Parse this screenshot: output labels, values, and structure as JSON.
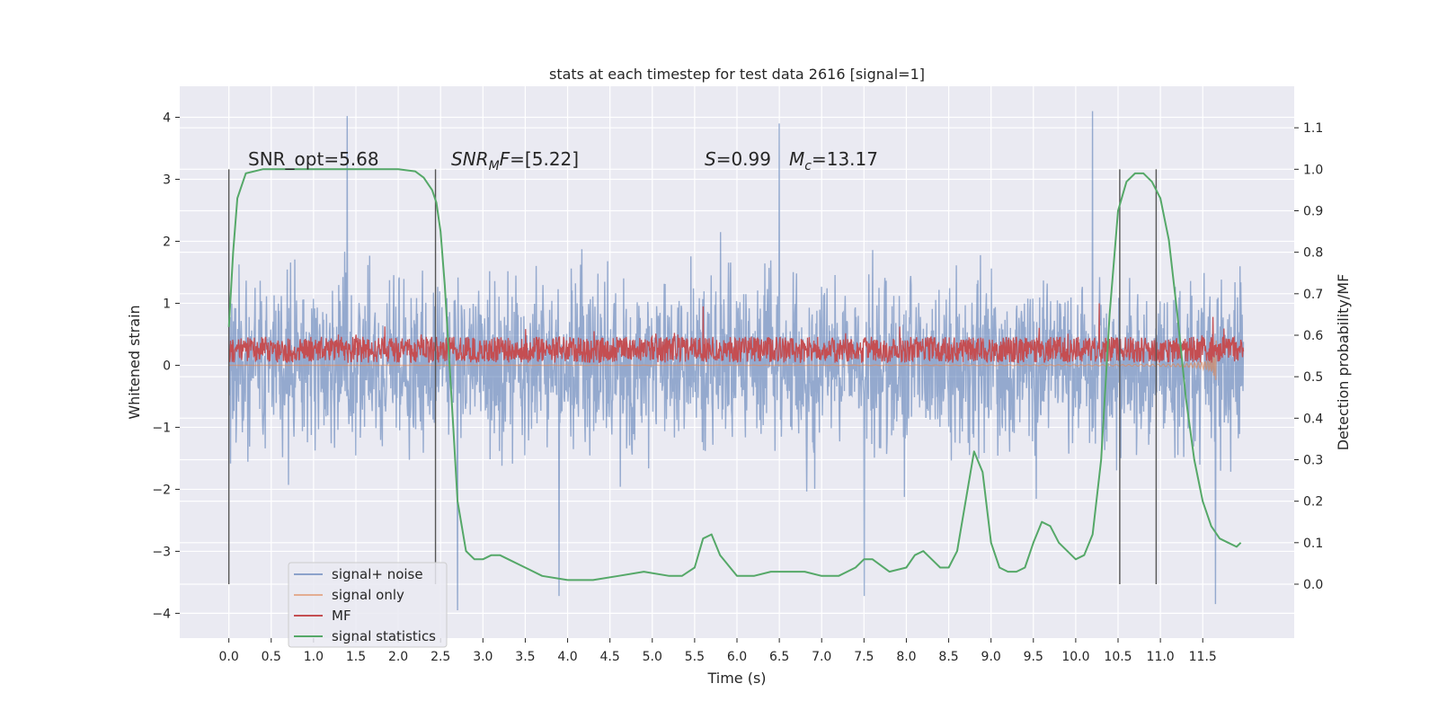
{
  "chart_data": {
    "type": "line",
    "title": "stats at each timestep for test data 2616 [signal=1]",
    "xlabel": "Time (s)",
    "ylabel_left": "Whitened strain",
    "ylabel_right": "Detection probability/MF",
    "xlim": [
      -0.58,
      12.58
    ],
    "ylim_left": [
      -4.4,
      4.5
    ],
    "ylim_right": [
      -0.13,
      1.2
    ],
    "x_ticks": [
      "0.0",
      "0.5",
      "1.0",
      "1.5",
      "2.0",
      "2.5",
      "3.0",
      "3.5",
      "4.0",
      "4.5",
      "5.0",
      "5.5",
      "6.0",
      "6.5",
      "7.0",
      "7.5",
      "8.0",
      "8.5",
      "9.0",
      "9.5",
      "10.0",
      "10.5",
      "11.0",
      "11.5"
    ],
    "y_ticks_left": [
      4,
      3,
      2,
      1,
      0,
      -1,
      -2,
      -3,
      -4
    ],
    "y_tick_labels_left": [
      "4",
      "3",
      "2",
      "1",
      "0",
      "−1",
      "−2",
      "−3",
      "−4"
    ],
    "y_ticks_right": [
      1.1,
      1.0,
      0.9,
      0.8,
      0.7,
      0.6,
      0.5,
      0.4,
      0.3,
      0.2,
      0.1,
      0.0
    ],
    "y_tick_labels_right": [
      "1.1",
      "1.0",
      "0.9",
      "0.8",
      "0.7",
      "0.6",
      "0.5",
      "0.4",
      "0.3",
      "0.2",
      "0.1",
      "0.0"
    ],
    "grid": true,
    "legend_position": "lower-left",
    "annotations": {
      "snr_opt": "SNR_opt=5.68",
      "snr_mf_var": "SNR",
      "snr_mf_sub": "M",
      "snr_mf_var2": "F",
      "snr_mf_val": "=[5.22]",
      "s_var": "S",
      "s_val": "=0.99",
      "mc_var": "M",
      "mc_sub": "c",
      "mc_val": "=13.17"
    },
    "vertical_markers": [
      0.0,
      2.44,
      10.52,
      10.95
    ],
    "marker_range_right": [
      0.0,
      1.0
    ],
    "series": [
      {
        "name": "signal+ noise",
        "color": "#4c72b0",
        "axis": "left",
        "kind": "noise",
        "x_range": [
          0.0,
          11.98
        ],
        "envelope_std": 1.05,
        "peaks": [
          [
            1.4,
            4.02
          ],
          [
            6.5,
            3.9
          ],
          [
            10.2,
            4.1
          ],
          [
            2.7,
            -3.95
          ],
          [
            7.5,
            -3.72
          ],
          [
            11.65,
            -3.85
          ],
          [
            3.9,
            -3.72
          ]
        ]
      },
      {
        "name": "signal only",
        "color": "#dd8452",
        "axis": "left",
        "kind": "chirp",
        "x_range": [
          0.0,
          11.66
        ],
        "peak_min": -1.0,
        "peak_max": 1.12
      },
      {
        "name": "MF",
        "color": "#c44e52",
        "axis": "left",
        "kind": "band",
        "x_range": [
          0.0,
          11.98
        ],
        "baseline": 0.25,
        "spikes": [
          [
            5.6,
            0.95
          ],
          [
            10.28,
            1.0
          ],
          [
            11.62,
            0.78
          ]
        ]
      },
      {
        "name": "signal statistics",
        "color": "#55a868",
        "axis": "right",
        "kind": "line",
        "x": [
          0.0,
          0.05,
          0.1,
          0.2,
          0.4,
          0.7,
          1.0,
          1.5,
          2.0,
          2.2,
          2.3,
          2.4,
          2.45,
          2.5,
          2.55,
          2.6,
          2.65,
          2.7,
          2.8,
          2.9,
          3.0,
          3.1,
          3.2,
          3.3,
          3.5,
          3.7,
          4.0,
          4.3,
          4.6,
          4.9,
          5.2,
          5.35,
          5.5,
          5.6,
          5.7,
          5.8,
          6.0,
          6.2,
          6.4,
          6.6,
          6.8,
          7.0,
          7.2,
          7.4,
          7.5,
          7.6,
          7.8,
          8.0,
          8.1,
          8.2,
          8.3,
          8.4,
          8.5,
          8.6,
          8.7,
          8.8,
          8.9,
          9.0,
          9.1,
          9.2,
          9.3,
          9.4,
          9.5,
          9.6,
          9.7,
          9.8,
          9.9,
          10.0,
          10.1,
          10.2,
          10.3,
          10.4,
          10.5,
          10.6,
          10.7,
          10.8,
          10.9,
          11.0,
          11.1,
          11.2,
          11.3,
          11.4,
          11.5,
          11.6,
          11.7,
          11.8,
          11.9,
          11.95
        ],
        "values": [
          0.62,
          0.8,
          0.93,
          0.99,
          1.0,
          1.0,
          1.0,
          1.0,
          1.0,
          0.995,
          0.98,
          0.95,
          0.92,
          0.85,
          0.72,
          0.55,
          0.38,
          0.2,
          0.08,
          0.06,
          0.06,
          0.07,
          0.07,
          0.06,
          0.04,
          0.02,
          0.01,
          0.01,
          0.02,
          0.03,
          0.02,
          0.02,
          0.04,
          0.11,
          0.12,
          0.07,
          0.02,
          0.02,
          0.03,
          0.03,
          0.03,
          0.02,
          0.02,
          0.04,
          0.06,
          0.06,
          0.03,
          0.04,
          0.07,
          0.08,
          0.06,
          0.04,
          0.04,
          0.08,
          0.2,
          0.32,
          0.27,
          0.1,
          0.04,
          0.03,
          0.03,
          0.04,
          0.1,
          0.15,
          0.14,
          0.1,
          0.08,
          0.06,
          0.07,
          0.12,
          0.3,
          0.65,
          0.9,
          0.97,
          0.99,
          0.99,
          0.97,
          0.93,
          0.83,
          0.65,
          0.45,
          0.3,
          0.2,
          0.14,
          0.11,
          0.1,
          0.09,
          0.1
        ]
      }
    ]
  }
}
